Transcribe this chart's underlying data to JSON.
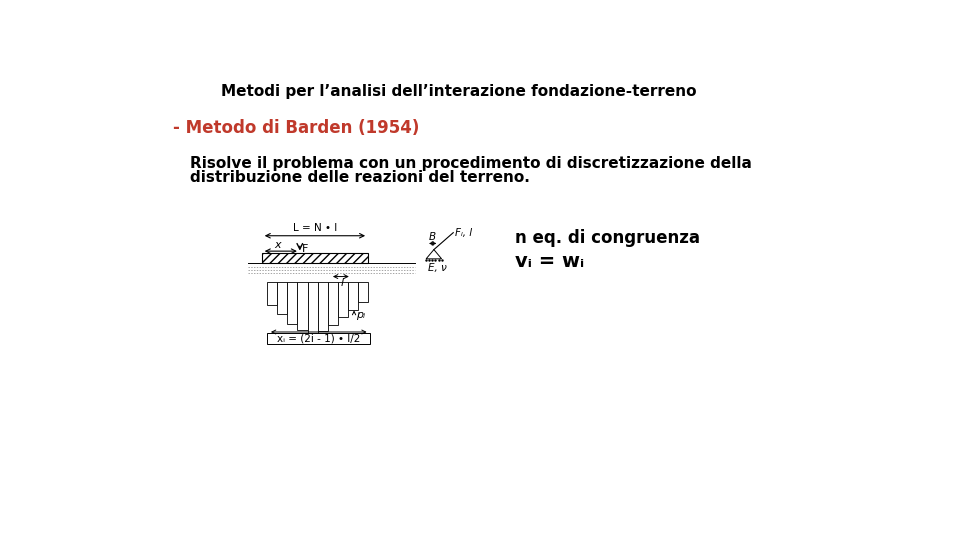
{
  "title": "Metodi per l’analisi dell’interazione fondazione-terreno",
  "subtitle": "- Metodo di Barden (1954)",
  "body_line1": "Risolve il problema con un procedimento di discretizzazione della",
  "body_line2": "distribuzione delle reazioni del terreno.",
  "eq_congruenza": "n eq. di congruenza",
  "eq_vi_wi": "vᵢ = wᵢ",
  "bg_color": "#ffffff",
  "title_color": "#000000",
  "subtitle_color": "#c0392b",
  "body_color": "#000000",
  "title_fontsize": 11,
  "subtitle_fontsize": 12,
  "body_fontsize": 11,
  "eq_fontsize": 12
}
